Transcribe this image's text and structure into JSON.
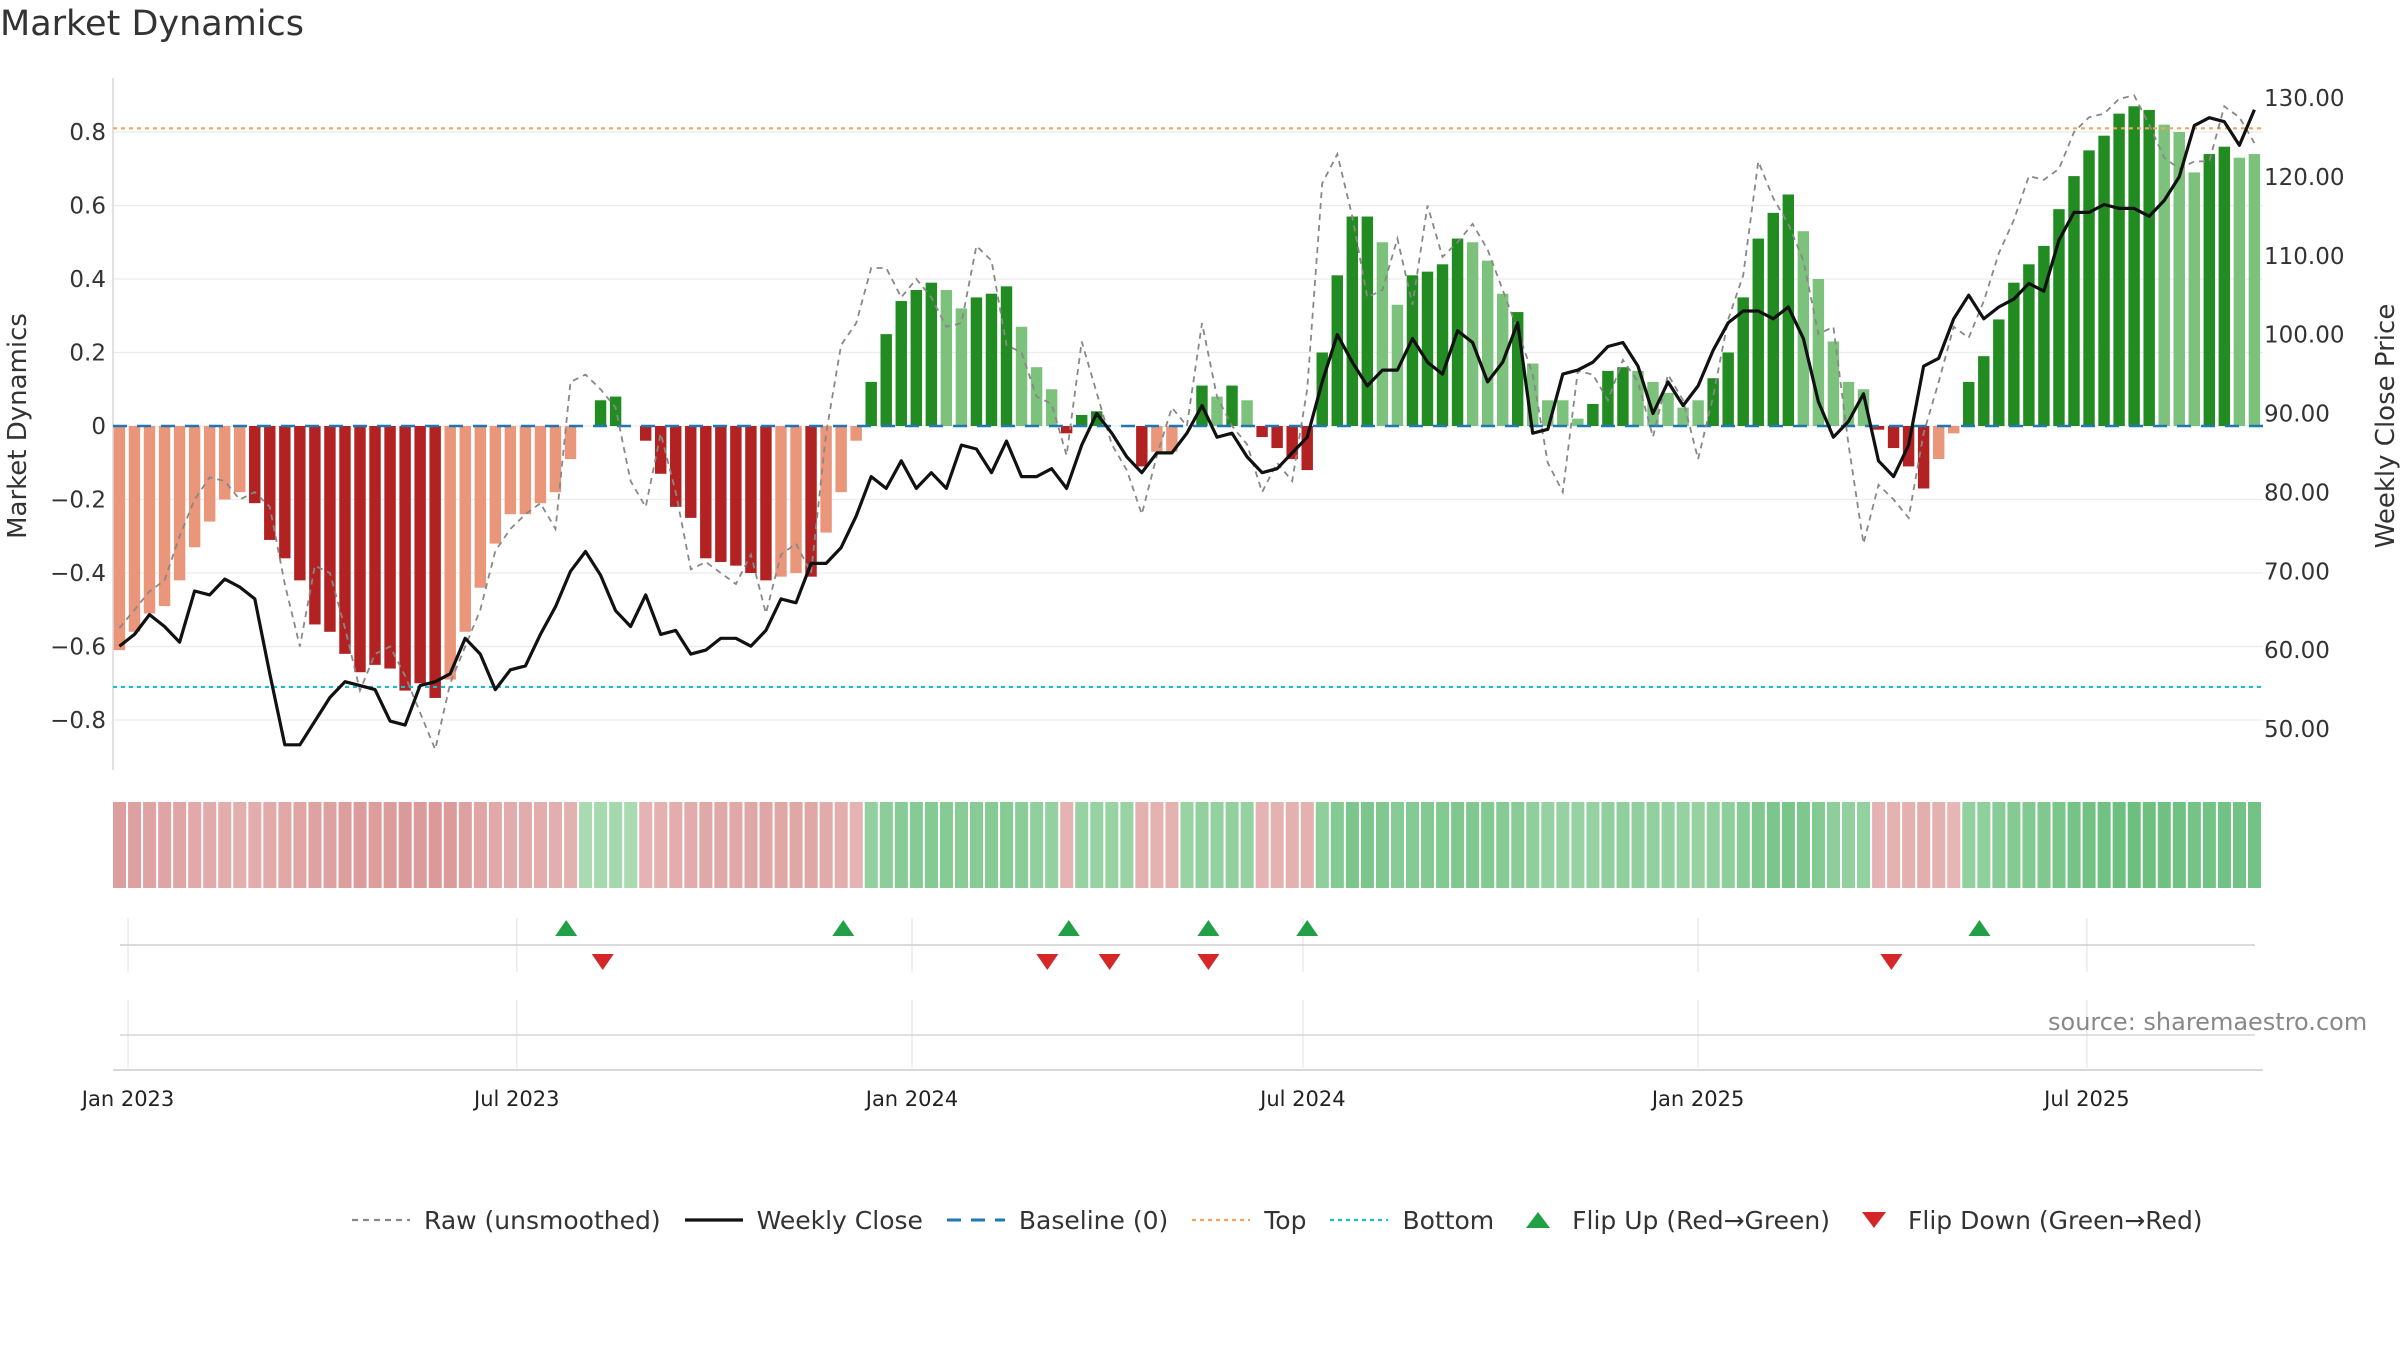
{
  "title": "Market Dynamics",
  "watermark": "source: sharemaestro.com",
  "colors": {
    "strong_red": "#b22222",
    "light_red": "#e9967a",
    "strong_green": "#228b22",
    "light_green": "#7cc17c",
    "raw": "#888888",
    "close": "#111111",
    "baseline": "#1f77b4",
    "top": "#f4a460",
    "bottom": "#17becf",
    "flip_up": "#22a045",
    "flip_down": "#d62728"
  },
  "legend": {
    "raw": "Raw (unsmoothed)",
    "close": "Weekly Close",
    "baseline": "Baseline (0)",
    "top": "Top",
    "bottom": "Bottom",
    "flip_up": "Flip Up (Red→Green)",
    "flip_down": "Flip Down (Green→Red)"
  },
  "chart_data": {
    "type": "bar",
    "title": "Market Dynamics",
    "ylabel": "Market Dynamics",
    "y2label": "Weekly Close Price",
    "ylim": [
      -0.94,
      0.94
    ],
    "y2lim": [
      43.5,
      133.5
    ],
    "yticks": [
      -0.8,
      -0.6,
      -0.4,
      -0.2,
      0,
      0.2,
      0.4,
      0.6,
      0.8
    ],
    "ytick_labels": [
      "−0.8",
      "−0.6",
      "−0.4",
      "−0.2",
      "0",
      "0.2",
      "0.4",
      "0.6",
      "0.8"
    ],
    "y2ticks": [
      50,
      60,
      70,
      80,
      90,
      100,
      110,
      120,
      130
    ],
    "y2tick_labels": [
      "50.00",
      "60.00",
      "70.00",
      "80.00",
      "90.00",
      "100.00",
      "110.00",
      "120.00",
      "130.00"
    ],
    "top_line": 0.81,
    "bottom_line": -0.71,
    "xlim": [
      "2022-12-25",
      "2025-09-21"
    ],
    "start_week": "2022-12-28",
    "xticks": [
      "2023-01-01",
      "2023-07-01",
      "2024-01-01",
      "2024-07-01",
      "2025-01-01",
      "2025-07-01"
    ],
    "xtick_labels": [
      "Jan 2023",
      "Jul 2023",
      "Jan 2024",
      "Jul 2024",
      "Jan 2025",
      "Jul 2025"
    ],
    "dynamics": [
      -0.61,
      -0.56,
      -0.51,
      -0.49,
      -0.42,
      -0.33,
      -0.26,
      -0.2,
      -0.18,
      -0.21,
      -0.31,
      -0.36,
      -0.42,
      -0.54,
      -0.56,
      -0.62,
      -0.67,
      -0.65,
      -0.66,
      -0.72,
      -0.7,
      -0.74,
      -0.69,
      -0.56,
      -0.44,
      -0.32,
      -0.24,
      -0.24,
      -0.21,
      -0.18,
      -0.09,
      0.0,
      0.07,
      0.08,
      0.0,
      -0.04,
      -0.13,
      -0.22,
      -0.25,
      -0.36,
      -0.37,
      -0.38,
      -0.4,
      -0.42,
      -0.41,
      -0.4,
      -0.41,
      -0.29,
      -0.18,
      -0.04,
      0.12,
      0.25,
      0.34,
      0.37,
      0.39,
      0.37,
      0.32,
      0.35,
      0.36,
      0.38,
      0.27,
      0.16,
      0.1,
      -0.02,
      0.03,
      0.04,
      0.0,
      0.0,
      -0.11,
      -0.07,
      -0.07,
      0.0,
      0.11,
      0.08,
      0.11,
      0.07,
      -0.03,
      -0.06,
      -0.09,
      -0.12,
      0.2,
      0.41,
      0.57,
      0.57,
      0.5,
      0.33,
      0.41,
      0.42,
      0.44,
      0.51,
      0.5,
      0.45,
      0.36,
      0.31,
      0.17,
      0.07,
      0.07,
      0.02,
      0.06,
      0.15,
      0.16,
      0.15,
      0.12,
      0.09,
      0.05,
      0.07,
      0.13,
      0.2,
      0.35,
      0.51,
      0.58,
      0.63,
      0.53,
      0.4,
      0.23,
      0.12,
      0.1,
      -0.01,
      -0.06,
      -0.11,
      -0.17,
      -0.09,
      -0.02,
      0.12,
      0.19,
      0.29,
      0.39,
      0.44,
      0.49,
      0.59,
      0.68,
      0.75,
      0.79,
      0.85,
      0.87,
      0.86,
      0.82,
      0.8,
      0.69,
      0.74,
      0.76,
      0.73,
      0.74
    ],
    "shade": [
      "L",
      "L",
      "L",
      "L",
      "L",
      "L",
      "L",
      "L",
      "L",
      "D",
      "D",
      "D",
      "D",
      "D",
      "D",
      "D",
      "D",
      "D",
      "D",
      "D",
      "D",
      "D",
      "L",
      "L",
      "L",
      "L",
      "L",
      "L",
      "L",
      "L",
      "L",
      "D",
      "D",
      "D",
      "L",
      "D",
      "D",
      "D",
      "D",
      "D",
      "D",
      "D",
      "D",
      "D",
      "L",
      "L",
      "D",
      "L",
      "L",
      "L",
      "D",
      "D",
      "D",
      "D",
      "D",
      "L",
      "L",
      "D",
      "D",
      "D",
      "L",
      "L",
      "L",
      "D",
      "D",
      "D",
      "D",
      "D",
      "D",
      "L",
      "L",
      "D",
      "D",
      "L",
      "D",
      "L",
      "D",
      "D",
      "D",
      "D",
      "D",
      "D",
      "D",
      "D",
      "L",
      "L",
      "D",
      "D",
      "D",
      "D",
      "L",
      "L",
      "L",
      "D",
      "L",
      "L",
      "L",
      "L",
      "D",
      "D",
      "D",
      "L",
      "L",
      "L",
      "L",
      "L",
      "D",
      "D",
      "D",
      "D",
      "D",
      "D",
      "L",
      "L",
      "L",
      "L",
      "L",
      "D",
      "D",
      "D",
      "D",
      "L",
      "L",
      "D",
      "D",
      "D",
      "D",
      "D",
      "D",
      "D",
      "D",
      "D",
      "D",
      "D",
      "D",
      "D",
      "L",
      "L",
      "L",
      "D",
      "D",
      "L",
      "L"
    ],
    "raw": [
      -0.55,
      -0.5,
      -0.45,
      -0.42,
      -0.3,
      -0.2,
      -0.14,
      -0.15,
      -0.2,
      -0.18,
      -0.22,
      -0.43,
      -0.6,
      -0.38,
      -0.4,
      -0.55,
      -0.72,
      -0.62,
      -0.6,
      -0.68,
      -0.78,
      -0.88,
      -0.7,
      -0.6,
      -0.5,
      -0.34,
      -0.28,
      -0.24,
      -0.21,
      -0.28,
      0.12,
      0.14,
      0.1,
      0.05,
      -0.15,
      -0.22,
      -0.02,
      -0.18,
      -0.39,
      -0.37,
      -0.4,
      -0.43,
      -0.35,
      -0.51,
      -0.35,
      -0.32,
      -0.4,
      -0.02,
      0.22,
      0.28,
      0.43,
      0.43,
      0.35,
      0.4,
      0.35,
      0.27,
      0.28,
      0.49,
      0.45,
      0.22,
      0.2,
      0.08,
      0.06,
      -0.08,
      0.23,
      0.09,
      -0.05,
      -0.12,
      -0.24,
      -0.08,
      0.05,
      0.0,
      0.28,
      0.08,
      0.0,
      -0.05,
      -0.18,
      -0.1,
      -0.15,
      0.1,
      0.66,
      0.74,
      0.57,
      0.35,
      0.37,
      0.51,
      0.33,
      0.6,
      0.46,
      0.5,
      0.55,
      0.48,
      0.37,
      0.26,
      0.14,
      -0.1,
      -0.18,
      0.15,
      0.14,
      0.07,
      0.18,
      0.12,
      -0.03,
      0.14,
      0.07,
      -0.09,
      0.08,
      0.29,
      0.41,
      0.72,
      0.62,
      0.55,
      0.45,
      0.25,
      0.27,
      -0.05,
      -0.32,
      -0.16,
      -0.2,
      -0.25,
      -0.02,
      0.12,
      0.27,
      0.24,
      0.34,
      0.47,
      0.56,
      0.68,
      0.67,
      0.7,
      0.8,
      0.84,
      0.85,
      0.89,
      0.9,
      0.82,
      0.73,
      0.7,
      0.72,
      0.72,
      0.87,
      0.84,
      0.77
    ],
    "close": [
      60.5,
      62.0,
      64.5,
      63.0,
      61.0,
      67.5,
      67.0,
      69.0,
      68.0,
      66.5,
      57.0,
      48.0,
      48.0,
      51.0,
      54.0,
      56.0,
      55.5,
      55.0,
      51.0,
      50.5,
      55.5,
      56.0,
      57.0,
      61.5,
      59.5,
      55.0,
      57.5,
      58.0,
      62.0,
      65.5,
      70.0,
      72.5,
      69.5,
      65.0,
      63.0,
      67.0,
      62.0,
      62.5,
      59.5,
      60.0,
      61.5,
      61.5,
      60.5,
      62.5,
      66.5,
      66.0,
      71.0,
      71.0,
      73.0,
      77.0,
      82.0,
      80.5,
      84.0,
      80.5,
      82.5,
      80.5,
      86.0,
      85.5,
      82.5,
      86.5,
      82.0,
      82.0,
      83.0,
      80.5,
      86.0,
      90.0,
      87.5,
      84.5,
      82.5,
      85.0,
      85.0,
      87.5,
      91.0,
      87.0,
      87.5,
      84.5,
      82.5,
      83.0,
      85.0,
      87.0,
      94.0,
      100.0,
      96.5,
      93.5,
      95.5,
      95.5,
      99.5,
      96.5,
      95.0,
      100.5,
      99.0,
      94.0,
      96.5,
      101.5,
      87.5,
      88.0,
      95.0,
      95.5,
      96.5,
      98.5,
      99.0,
      96.0,
      90.0,
      94.0,
      91.0,
      93.5,
      98.0,
      101.5,
      103.0,
      103.0,
      102.0,
      103.5,
      99.5,
      91.5,
      87.0,
      89.0,
      92.5,
      84.0,
      82.0,
      86.0,
      96.0,
      97.0,
      102.0,
      105.0,
      102.0,
      103.5,
      104.5,
      106.5,
      105.5,
      112.0,
      115.5,
      115.5,
      116.5,
      116.0,
      116.0,
      115.0,
      117.0,
      120.0,
      126.5,
      127.5,
      127.0,
      124.0,
      128.5
    ],
    "heat": [
      0.51,
      0.49,
      0.47,
      0.46,
      0.44,
      0.41,
      0.39,
      0.37,
      0.36,
      0.37,
      0.4,
      0.42,
      0.44,
      0.48,
      0.49,
      0.51,
      0.53,
      0.52,
      0.53,
      0.55,
      0.54,
      0.56,
      0.54,
      0.49,
      0.45,
      0.41,
      0.38,
      0.38,
      0.37,
      0.36,
      0.33,
      0.3,
      0.32,
      0.33,
      0.3,
      0.31,
      0.34,
      0.37,
      0.38,
      0.42,
      0.42,
      0.42,
      0.43,
      0.44,
      0.43,
      0.43,
      0.43,
      0.39,
      0.36,
      0.31,
      0.44,
      0.48,
      0.51,
      0.52,
      0.53,
      0.52,
      0.5,
      0.51,
      0.52,
      0.52,
      0.49,
      0.45,
      0.43,
      0.31,
      0.41,
      0.41,
      0.4,
      0.4,
      0.33,
      0.32,
      0.32,
      0.4,
      0.44,
      0.43,
      0.44,
      0.42,
      0.31,
      0.32,
      0.33,
      0.34,
      0.46,
      0.53,
      0.58,
      0.58,
      0.56,
      0.51,
      0.53,
      0.54,
      0.54,
      0.56,
      0.56,
      0.54,
      0.52,
      0.5,
      0.46,
      0.42,
      0.42,
      0.41,
      0.42,
      0.45,
      0.45,
      0.45,
      0.44,
      0.43,
      0.42,
      0.42,
      0.44,
      0.46,
      0.51,
      0.56,
      0.58,
      0.6,
      0.57,
      0.53,
      0.47,
      0.44,
      0.43,
      0.31,
      0.32,
      0.34,
      0.36,
      0.33,
      0.3,
      0.44,
      0.46,
      0.5,
      0.53,
      0.54,
      0.56,
      0.59,
      0.62,
      0.64,
      0.65,
      0.67,
      0.68,
      0.67,
      0.66,
      0.65,
      0.62,
      0.63,
      0.64,
      0.63,
      0.63
    ],
    "flip_up_dates": [
      "2023-07-24",
      "2023-11-30",
      "2024-03-14",
      "2024-05-18",
      "2024-07-03",
      "2025-05-12"
    ],
    "flip_down_dates": [
      "2023-08-10",
      "2024-03-04",
      "2024-04-02",
      "2024-05-18",
      "2025-04-01"
    ]
  }
}
